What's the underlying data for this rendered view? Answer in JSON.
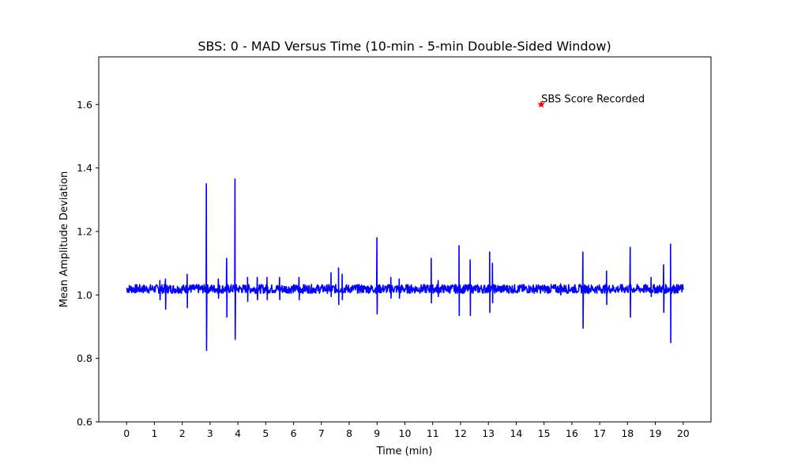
{
  "chart_data": {
    "type": "line",
    "title": "SBS: 0 - MAD Versus Time (10-min - 5-min Double-Sided Window)",
    "xlabel": "Time (min)",
    "ylabel": "Mean Amplitude Deviation",
    "xlim": [
      -1,
      21
    ],
    "ylim": [
      0.6,
      1.75
    ],
    "xticks": [
      "0",
      "1",
      "2",
      "3",
      "4",
      "5",
      "6",
      "7",
      "8",
      "9",
      "10",
      "11",
      "12",
      "13",
      "14",
      "15",
      "16",
      "17",
      "18",
      "19",
      "20"
    ],
    "yticks": [
      "0.6",
      "0.8",
      "1.0",
      "1.2",
      "1.4",
      "1.6"
    ],
    "grid": false,
    "series": [
      {
        "color": "#0000ff",
        "baseline": 1.02,
        "band": [
          1.005,
          1.033
        ],
        "x_range": [
          0,
          20
        ],
        "spikes": [
          {
            "x": 1.2,
            "high": 1.045,
            "low": 0.985
          },
          {
            "x": 1.4,
            "high": 1.05,
            "low": 0.955
          },
          {
            "x": 2.18,
            "high": 1.065,
            "low": 0.96
          },
          {
            "x": 2.87,
            "high": 1.35,
            "low": 0.825
          },
          {
            "x": 3.3,
            "high": 1.05,
            "low": 0.99
          },
          {
            "x": 3.6,
            "high": 1.115,
            "low": 0.93
          },
          {
            "x": 3.9,
            "high": 1.365,
            "low": 0.86
          },
          {
            "x": 4.35,
            "high": 1.055,
            "low": 0.98
          },
          {
            "x": 4.7,
            "high": 1.055,
            "low": 0.985
          },
          {
            "x": 5.05,
            "high": 1.055,
            "low": 0.985
          },
          {
            "x": 5.5,
            "high": 1.055,
            "low": 0.985
          },
          {
            "x": 6.2,
            "high": 1.055,
            "low": 0.985
          },
          {
            "x": 7.35,
            "high": 1.07,
            "low": 0.995
          },
          {
            "x": 7.62,
            "high": 1.085,
            "low": 0.97
          },
          {
            "x": 7.75,
            "high": 1.065,
            "low": 0.985
          },
          {
            "x": 9.0,
            "high": 1.18,
            "low": 0.94
          },
          {
            "x": 9.5,
            "high": 1.055,
            "low": 0.99
          },
          {
            "x": 9.8,
            "high": 1.05,
            "low": 0.99
          },
          {
            "x": 10.95,
            "high": 1.115,
            "low": 0.975
          },
          {
            "x": 11.2,
            "high": 1.045,
            "low": 0.995
          },
          {
            "x": 11.95,
            "high": 1.155,
            "low": 0.935
          },
          {
            "x": 12.35,
            "high": 1.11,
            "low": 0.935
          },
          {
            "x": 13.05,
            "high": 1.135,
            "low": 0.945
          },
          {
            "x": 13.15,
            "high": 1.1,
            "low": 0.975
          },
          {
            "x": 15.6,
            "high": 1.035,
            "low": 1.0
          },
          {
            "x": 16.4,
            "high": 1.135,
            "low": 0.895
          },
          {
            "x": 17.25,
            "high": 1.075,
            "low": 0.97
          },
          {
            "x": 18.1,
            "high": 1.15,
            "low": 0.93
          },
          {
            "x": 18.85,
            "high": 1.055,
            "low": 0.995
          },
          {
            "x": 19.3,
            "high": 1.095,
            "low": 0.945
          },
          {
            "x": 19.55,
            "high": 1.16,
            "low": 0.85
          }
        ]
      }
    ],
    "marker": {
      "x": 14.9,
      "y": 1.6,
      "color": "#ff0000",
      "label": "SBS Score Recorded"
    }
  }
}
